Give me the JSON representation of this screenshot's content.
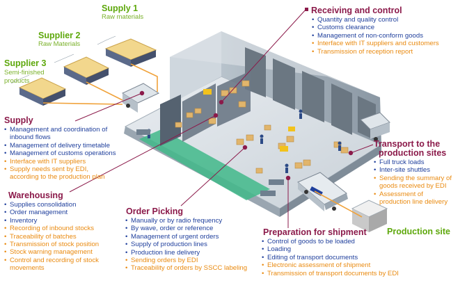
{
  "colors": {
    "title": "#8b1a4a",
    "green": "#5ea80c",
    "blue": "#1f3f9c",
    "orange": "#e98a10"
  },
  "suppliers": [
    {
      "title": "Supply 1",
      "subtitle": "Raw materials"
    },
    {
      "title": "Supplier 2",
      "subtitle": "Raw Materials"
    },
    {
      "title": "Supplier 3",
      "subtitle": "Semi-finished products"
    }
  ],
  "receiving": {
    "title": "Receiving and control",
    "items": [
      {
        "text": "Quantity and quality control",
        "tone": "blue"
      },
      {
        "text": "Customs clearance",
        "tone": "blue"
      },
      {
        "text": "Management of non-conform goods",
        "tone": "blue"
      },
      {
        "text": "Interface with IT suppliers and customers",
        "tone": "orange"
      },
      {
        "text": "Transmission of reception report",
        "tone": "orange"
      }
    ]
  },
  "supply": {
    "title": "Supply",
    "items": [
      {
        "text": "Management and coordination of",
        "tone": "blue"
      },
      {
        "text": "inbound flows",
        "tone": "blue",
        "cont": true
      },
      {
        "text": "Management of delivery timetable",
        "tone": "blue"
      },
      {
        "text": "Management of customs operations",
        "tone": "blue"
      },
      {
        "text": "Interface with IT suppliers",
        "tone": "orange"
      },
      {
        "text": "Supply needs sent by EDI,",
        "tone": "orange"
      },
      {
        "text": "according to the production plan",
        "tone": "orange",
        "cont": true
      }
    ]
  },
  "transport": {
    "title_line1": "Transport to the",
    "title_line2": "production sites",
    "items": [
      {
        "text": "Full truck loads",
        "tone": "blue"
      },
      {
        "text": "Inter-site shuttles",
        "tone": "blue"
      },
      {
        "text": "Sending the summary of",
        "tone": "orange"
      },
      {
        "text": "goods received by EDI",
        "tone": "orange",
        "cont": true
      },
      {
        "text": "Assessment of",
        "tone": "orange"
      },
      {
        "text": "production line delivery",
        "tone": "orange",
        "cont": true
      }
    ]
  },
  "warehousing": {
    "title": "Warehousing",
    "items": [
      {
        "text": "Supplies consolidation",
        "tone": "blue"
      },
      {
        "text": "Order management",
        "tone": "blue"
      },
      {
        "text": "Inventory",
        "tone": "blue"
      },
      {
        "text": "Recording of inbound stocks",
        "tone": "orange"
      },
      {
        "text": "Traceability of batches",
        "tone": "orange"
      },
      {
        "text": "Transmission of stock position",
        "tone": "orange"
      },
      {
        "text": "Stock warning management",
        "tone": "orange"
      },
      {
        "text": "Control and recording of stock",
        "tone": "orange"
      },
      {
        "text": "movements",
        "tone": "orange",
        "cont": true
      }
    ]
  },
  "picking": {
    "title": "Order Picking",
    "items": [
      {
        "text": "Manually or by radio frequency",
        "tone": "blue"
      },
      {
        "text": "By wave, order or reference",
        "tone": "blue"
      },
      {
        "text": "Management of urgent orders",
        "tone": "blue"
      },
      {
        "text": "Supply of production lines",
        "tone": "blue"
      },
      {
        "text": "Production line delivery",
        "tone": "blue"
      },
      {
        "text": "Sending orders by EDI",
        "tone": "orange"
      },
      {
        "text": "Traceability of orders by SSCC labeling",
        "tone": "orange"
      }
    ]
  },
  "shipment": {
    "title": "Preparation for shipment",
    "items": [
      {
        "text": "Control of goods to be loaded",
        "tone": "blue"
      },
      {
        "text": "Loading",
        "tone": "blue"
      },
      {
        "text": "Editing of transport documents",
        "tone": "blue"
      },
      {
        "text": "Electronic assessment of shipment",
        "tone": "orange"
      },
      {
        "text": "Transmission of transport documents by EDI",
        "tone": "orange"
      }
    ]
  },
  "production_site": {
    "title": "Production site"
  }
}
